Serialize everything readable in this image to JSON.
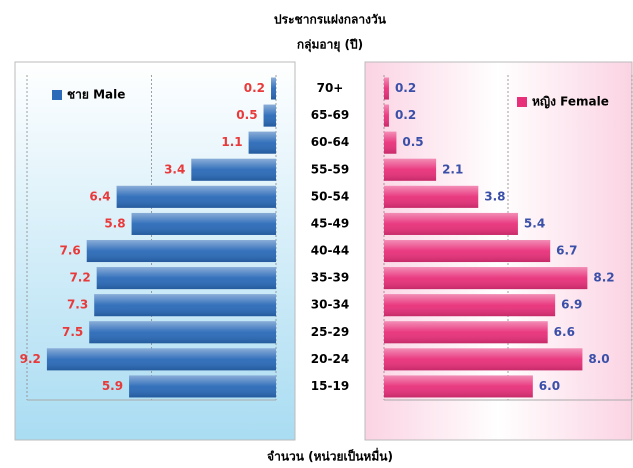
{
  "chart_data": {
    "type": "population_pyramid",
    "title": "ประชากรแฝงกลางวัน",
    "subtitle": "กลุ่มอายุ (ปี)",
    "x_label": "จำนวน (หน่วยเป็นหมื่น)",
    "categories": [
      "70+",
      "65-69",
      "60-64",
      "55-59",
      "50-54",
      "45-49",
      "40-44",
      "35-39",
      "30-34",
      "25-29",
      "20-24",
      "15-19"
    ],
    "series": [
      {
        "name": "ชาย Male",
        "color": "#2a6ab8",
        "label_color": "#e83a3a",
        "values": [
          0.2,
          0.5,
          1.1,
          3.4,
          6.4,
          5.8,
          7.6,
          7.2,
          7.3,
          7.5,
          9.2,
          5.9
        ]
      },
      {
        "name": "หญิง Female",
        "color": "#e8307a",
        "label_color": "#3a4fa8",
        "values": [
          0.2,
          0.2,
          0.5,
          2.1,
          3.8,
          5.4,
          6.7,
          8.2,
          6.9,
          6.6,
          8.0,
          6.0
        ],
        "value_labels": [
          "0.2",
          "0.2",
          "0.5",
          "2.1",
          "3.8",
          "5.4",
          "6.7",
          "8.2",
          "6.9",
          "6.6",
          "8.0",
          "6.0"
        ]
      }
    ],
    "xlim": [
      0,
      10
    ],
    "xticks": [
      0,
      5,
      10
    ],
    "grid": true
  }
}
